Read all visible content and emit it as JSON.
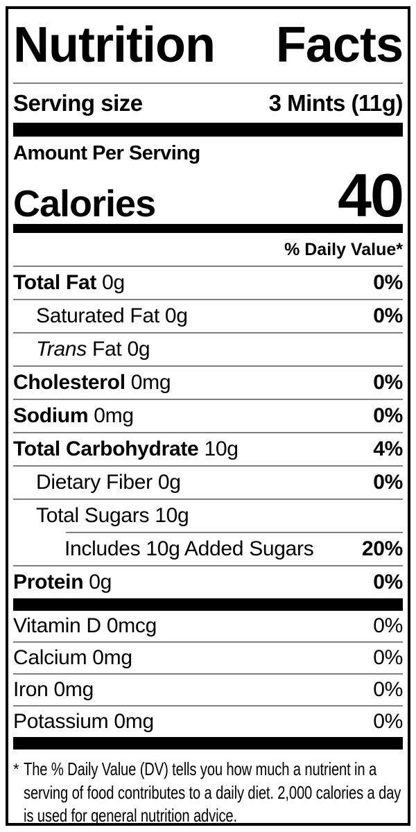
{
  "label": {
    "title": "Nutrition Facts",
    "serving": {
      "label": "Serving size",
      "value": "3 Mints (11g)"
    },
    "amount_per_serving": "Amount Per Serving",
    "calories": {
      "label": "Calories",
      "value": "40"
    },
    "daily_value_header": "% Daily Value*",
    "nutrients": [
      {
        "name": "Total Fat",
        "amount": "0g",
        "dv": "0%",
        "bold": true,
        "indent": 0
      },
      {
        "name": "Saturated Fat",
        "amount": "0g",
        "dv": "0%",
        "bold": false,
        "indent": 1
      },
      {
        "name": "Trans Fat",
        "amount": "0g",
        "dv": "",
        "bold": false,
        "indent": 1,
        "italic_first": true
      },
      {
        "name": "Cholesterol",
        "amount": "0mg",
        "dv": "0%",
        "bold": true,
        "indent": 0
      },
      {
        "name": "Sodium",
        "amount": "0mg",
        "dv": "0%",
        "bold": true,
        "indent": 0
      },
      {
        "name": "Total Carbohydrate",
        "amount": "10g",
        "dv": "4%",
        "bold": true,
        "indent": 0
      },
      {
        "name": "Dietary Fiber",
        "amount": "0g",
        "dv": "0%",
        "bold": false,
        "indent": 1
      },
      {
        "name": "Total Sugars",
        "amount": "10g",
        "dv": "",
        "bold": false,
        "indent": 1
      },
      {
        "name": "Includes 10g Added Sugars",
        "amount": "",
        "dv": "20%",
        "bold": false,
        "indent": 2,
        "partial_rule": true
      },
      {
        "name": "Protein",
        "amount": "0g",
        "dv": "0%",
        "bold": true,
        "indent": 0
      }
    ],
    "vitamins": [
      {
        "name": "Vitamin D",
        "amount": "0mcg",
        "dv": "0%"
      },
      {
        "name": "Calcium",
        "amount": "0mg",
        "dv": "0%"
      },
      {
        "name": "Iron",
        "amount": "0mg",
        "dv": "0%"
      },
      {
        "name": "Potassium",
        "amount": "0mg",
        "dv": "0%"
      }
    ],
    "footnote": {
      "asterisk": "*",
      "text": "The % Daily Value (DV) tells you how much a nutrient in a serving of food contributes to a daily diet. 2,000 calories a day is used for general nutrition advice."
    }
  },
  "colors": {
    "text": "#000000",
    "background": "#ffffff",
    "divider": "#7f7f7f",
    "bar": "#000000"
  }
}
